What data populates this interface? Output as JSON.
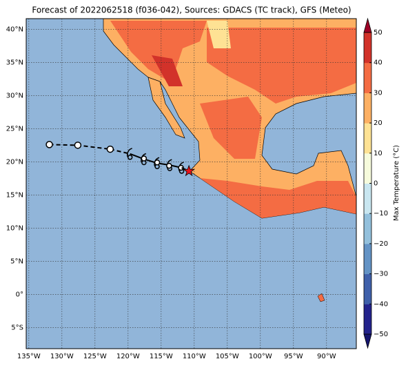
{
  "map": {
    "title": "Forecast of 2022062518 (f036-042), Sources: GDACS (TC track), GFS (Meteo)",
    "xlim": [
      -135.4,
      -85.5
    ],
    "ylim": [
      -8.2,
      41.6
    ],
    "xticks": [
      {
        "value": -135,
        "label": "135°W"
      },
      {
        "value": -130,
        "label": "130°W"
      },
      {
        "value": -125,
        "label": "125°W"
      },
      {
        "value": -120,
        "label": "120°W"
      },
      {
        "value": -115,
        "label": "115°W"
      },
      {
        "value": -110,
        "label": "110°W"
      },
      {
        "value": -105,
        "label": "105°W"
      },
      {
        "value": -100,
        "label": "100°W"
      },
      {
        "value": -95,
        "label": "95°W"
      },
      {
        "value": -90,
        "label": "90°W"
      }
    ],
    "yticks": [
      {
        "value": -5,
        "label": "5°S"
      },
      {
        "value": 0,
        "label": "0°"
      },
      {
        "value": 5,
        "label": "5°N"
      },
      {
        "value": 10,
        "label": "10°N"
      },
      {
        "value": 15,
        "label": "15°N"
      },
      {
        "value": 20,
        "label": "20°N"
      },
      {
        "value": 25,
        "label": "25°N"
      },
      {
        "value": 30,
        "label": "30°N"
      },
      {
        "value": 35,
        "label": "35°N"
      },
      {
        "value": 40,
        "label": "40°N"
      }
    ],
    "grid": true,
    "track": {
      "observed": {
        "lon": [
          -131.9,
          -127.6,
          -122.7
        ],
        "lat": [
          22.6,
          22.5,
          21.9
        ]
      },
      "forecast": {
        "lon": [
          -119.7,
          -117.6,
          -115.6,
          -113.7,
          -111.9
        ],
        "lat": [
          21.2,
          20.4,
          19.8,
          19.5,
          19.1
        ]
      },
      "forecast_points": {
        "lon": [
          -117.6,
          -115.6,
          -113.8,
          -112.0
        ],
        "lat": [
          20.5,
          19.9,
          19.4,
          19.1
        ]
      },
      "position": {
        "lon": -110.8,
        "lat": 18.6
      }
    },
    "colorbar": {
      "label": "Max Temperature (°C)",
      "lim": [
        -50,
        50
      ],
      "ticks": [
        {
          "value": -50,
          "label": "−50"
        },
        {
          "value": -40,
          "label": "−40"
        },
        {
          "value": -30,
          "label": "−30"
        },
        {
          "value": -20,
          "label": "−20"
        },
        {
          "value": -10,
          "label": "−10"
        },
        0,
        10,
        20,
        30,
        40,
        50
      ],
      "colors": [
        "#23238c",
        "#3f60aa",
        "#6393c5",
        "#93c0dc",
        "#c9e6f0",
        "#f6fbdc",
        "#fee294",
        "#fdb063",
        "#f46c43",
        "#d2322a"
      ],
      "under": "#15156e",
      "over": "#9e0026"
    }
  }
}
